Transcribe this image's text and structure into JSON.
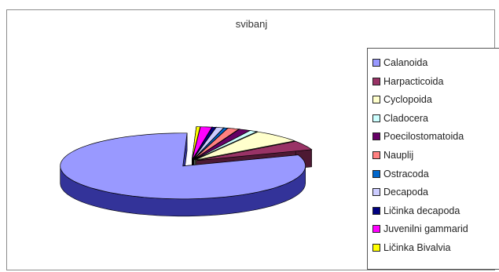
{
  "chart_data": {
    "type": "pie",
    "style": "3d-exploded",
    "title": "svibanj",
    "legend_position": "right",
    "categories": [
      "Calanoida",
      "Harpacticoida",
      "Cyclopoida",
      "Cladocera",
      "Poecilostomatoida",
      "Nauplij",
      "Ostracoda",
      "Decapoda",
      "Ličinka decapoda",
      "Juvenilni gammarid",
      "Ličinka Bivalvia"
    ],
    "values": [
      81.0,
      4.5,
      6.5,
      1.0,
      1.5,
      1.5,
      0.5,
      1.0,
      0.5,
      1.5,
      0.5
    ],
    "colors": [
      "#9999ff",
      "#993366",
      "#ffffcc",
      "#ccffff",
      "#660066",
      "#ff8080",
      "#0066cc",
      "#ccccff",
      "#000080",
      "#ff00ff",
      "#ffff00"
    ],
    "side_colors": [
      "#333399",
      "#4d1933",
      "#99996b",
      "#7fa0a0",
      "#330033",
      "#994d4d",
      "#003366",
      "#8080a0",
      "#000040",
      "#800080",
      "#999900"
    ]
  }
}
